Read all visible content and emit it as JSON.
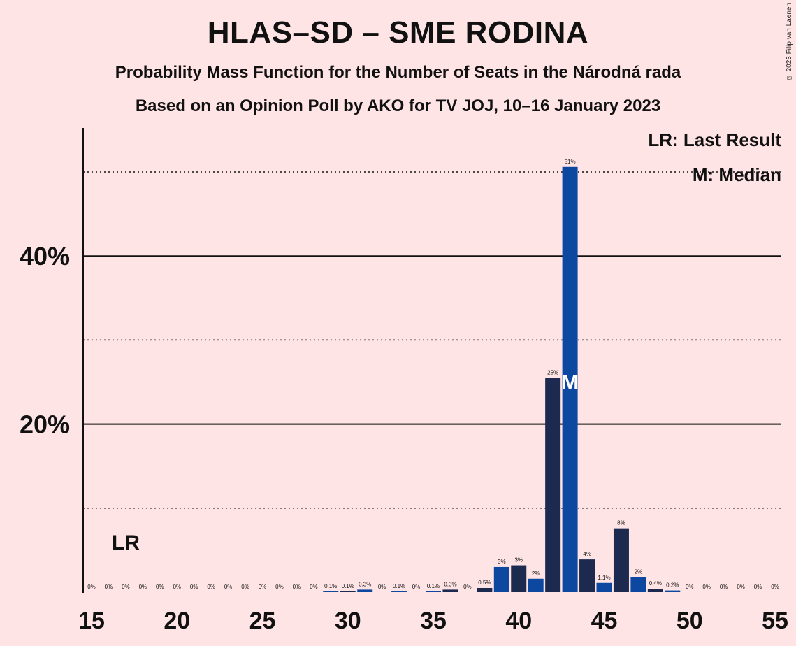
{
  "title": "HLAS–SD – SME RODINA",
  "subtitle1": "Probability Mass Function for the Number of Seats in the Národná rada",
  "subtitle2": "Based on an Opinion Poll by AKO for TV JOJ, 10–16 January 2023",
  "copyright": "© 2023 Filip van Laenen",
  "legend": {
    "last_result": "LR: Last Result",
    "median": "M: Median"
  },
  "markers": {
    "lr_label": "LR",
    "median_symbol": "M"
  },
  "colors": {
    "background": "#FFE4E6",
    "bar_dark": "#1B2A4E",
    "bar_blue": "#0C48A0"
  },
  "chart_data": {
    "type": "bar",
    "xlabel": "",
    "ylabel": "",
    "x": [
      15,
      16,
      17,
      18,
      19,
      20,
      21,
      22,
      23,
      24,
      25,
      26,
      27,
      28,
      29,
      30,
      31,
      32,
      33,
      34,
      35,
      36,
      37,
      38,
      39,
      40,
      41,
      42,
      43,
      44,
      45,
      46,
      47,
      48,
      49,
      50,
      51,
      52,
      53,
      54,
      55
    ],
    "values": [
      0,
      0,
      0,
      0,
      0,
      0,
      0,
      0,
      0,
      0,
      0,
      0,
      0,
      0,
      0.1,
      0.1,
      0.3,
      0,
      0.1,
      0,
      0.1,
      0.3,
      0,
      0.5,
      3,
      3.2,
      1.6,
      25.5,
      50.6,
      3.9,
      1.1,
      7.6,
      1.8,
      0.4,
      0.2,
      0,
      0,
      0,
      0,
      0,
      0
    ],
    "labels": [
      "0%",
      "0%",
      "0%",
      "0%",
      "0%",
      "0%",
      "0%",
      "0%",
      "0%",
      "0%",
      "0%",
      "0%",
      "0%",
      "0%",
      "0.1%",
      "0.1%",
      "0.3%",
      "0%",
      "0.1%",
      "0%",
      "0.1%",
      "0.3%",
      "0%",
      "0.5%",
      "3%",
      "3%",
      "2%",
      "25%",
      "51%",
      "4%",
      "1.1%",
      "8%",
      "2%",
      "0.4%",
      "0.2%",
      "0%",
      "0%",
      "0%",
      "0%",
      "0%",
      "0%"
    ],
    "x_ticks": [
      15,
      20,
      25,
      30,
      35,
      40,
      45,
      50,
      55
    ],
    "x_tick_labels": [
      "15",
      "20",
      "25",
      "30",
      "35",
      "40",
      "45",
      "50",
      "55"
    ],
    "y_ticks_labeled": [
      20,
      40
    ],
    "y_tick_labels": [
      "20%",
      "40%"
    ],
    "y_ticks_dotted": [
      10,
      30,
      50
    ],
    "ylim": [
      0,
      55
    ],
    "xlim": [
      15,
      55
    ],
    "last_result": 17,
    "median": 43,
    "grid": true,
    "legend_position": "top-right"
  }
}
